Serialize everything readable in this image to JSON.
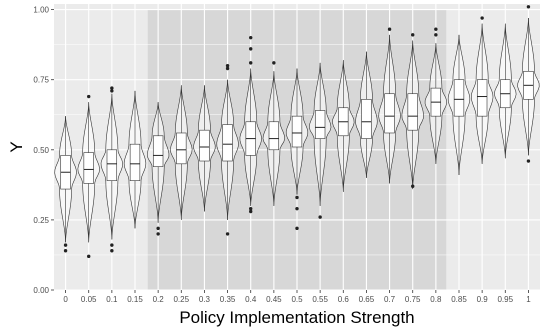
{
  "chart_data": {
    "type": "violin",
    "xlabel": "Policy Implementation Strength",
    "ylabel": "Y",
    "ylim": [
      0,
      1.02
    ],
    "yticks": [
      "0.00",
      "0.25",
      "0.50",
      "0.75",
      "1.00"
    ],
    "grid": true,
    "shaded_region": {
      "x_from": "0.2",
      "x_to": "0.8"
    },
    "categories": [
      "0",
      "0.05",
      "0.1",
      "0.15",
      "0.2",
      "0.25",
      "0.3",
      "0.35",
      "0.4",
      "0.45",
      "0.5",
      "0.55",
      "0.6",
      "0.65",
      "0.7",
      "0.75",
      "0.8",
      "0.85",
      "0.9",
      "0.95",
      "1"
    ],
    "groups": [
      {
        "min": 0.17,
        "q1": 0.36,
        "median": 0.42,
        "q3": 0.48,
        "max": 0.62,
        "outliers": [
          0.14,
          0.16
        ]
      },
      {
        "min": 0.17,
        "q1": 0.38,
        "median": 0.43,
        "q3": 0.49,
        "max": 0.67,
        "outliers": [
          0.12,
          0.69
        ]
      },
      {
        "min": 0.18,
        "q1": 0.39,
        "median": 0.45,
        "q3": 0.5,
        "max": 0.7,
        "outliers": [
          0.14,
          0.16,
          0.71,
          0.72
        ]
      },
      {
        "min": 0.22,
        "q1": 0.39,
        "median": 0.45,
        "q3": 0.52,
        "max": 0.71,
        "outliers": []
      },
      {
        "min": 0.24,
        "q1": 0.44,
        "median": 0.48,
        "q3": 0.55,
        "max": 0.67,
        "outliers": [
          0.2,
          0.22
        ]
      },
      {
        "min": 0.25,
        "q1": 0.45,
        "median": 0.5,
        "q3": 0.56,
        "max": 0.73,
        "outliers": []
      },
      {
        "min": 0.28,
        "q1": 0.46,
        "median": 0.51,
        "q3": 0.57,
        "max": 0.73,
        "outliers": []
      },
      {
        "min": 0.25,
        "q1": 0.46,
        "median": 0.52,
        "q3": 0.59,
        "max": 0.75,
        "outliers": [
          0.2,
          0.79,
          0.8
        ]
      },
      {
        "min": 0.3,
        "q1": 0.48,
        "median": 0.54,
        "q3": 0.6,
        "max": 0.79,
        "outliers": [
          0.28,
          0.29,
          0.81,
          0.86,
          0.9
        ]
      },
      {
        "min": 0.3,
        "q1": 0.5,
        "median": 0.54,
        "q3": 0.6,
        "max": 0.78,
        "outliers": [
          0.81
        ]
      },
      {
        "min": 0.34,
        "q1": 0.51,
        "median": 0.56,
        "q3": 0.62,
        "max": 0.79,
        "outliers": [
          0.22,
          0.29,
          0.33
        ]
      },
      {
        "min": 0.3,
        "q1": 0.54,
        "median": 0.58,
        "q3": 0.64,
        "max": 0.81,
        "outliers": [
          0.26
        ]
      },
      {
        "min": 0.35,
        "q1": 0.55,
        "median": 0.6,
        "q3": 0.65,
        "max": 0.82,
        "outliers": []
      },
      {
        "min": 0.4,
        "q1": 0.54,
        "median": 0.6,
        "q3": 0.68,
        "max": 0.85,
        "outliers": []
      },
      {
        "min": 0.38,
        "q1": 0.56,
        "median": 0.62,
        "q3": 0.7,
        "max": 0.91,
        "outliers": [
          0.93
        ]
      },
      {
        "min": 0.36,
        "q1": 0.57,
        "median": 0.62,
        "q3": 0.7,
        "max": 0.89,
        "outliers": [
          0.37,
          0.91
        ]
      },
      {
        "min": 0.45,
        "q1": 0.62,
        "median": 0.67,
        "q3": 0.72,
        "max": 0.88,
        "outliers": [
          0.91,
          0.93
        ]
      },
      {
        "min": 0.41,
        "q1": 0.62,
        "median": 0.68,
        "q3": 0.75,
        "max": 0.91,
        "outliers": []
      },
      {
        "min": 0.45,
        "q1": 0.62,
        "median": 0.69,
        "q3": 0.75,
        "max": 0.95,
        "outliers": [
          0.97
        ]
      },
      {
        "min": 0.47,
        "q1": 0.65,
        "median": 0.7,
        "q3": 0.75,
        "max": 0.95,
        "outliers": []
      },
      {
        "min": 0.48,
        "q1": 0.68,
        "median": 0.73,
        "q3": 0.78,
        "max": 0.97,
        "outliers": [
          0.46,
          1.01
        ]
      }
    ]
  }
}
